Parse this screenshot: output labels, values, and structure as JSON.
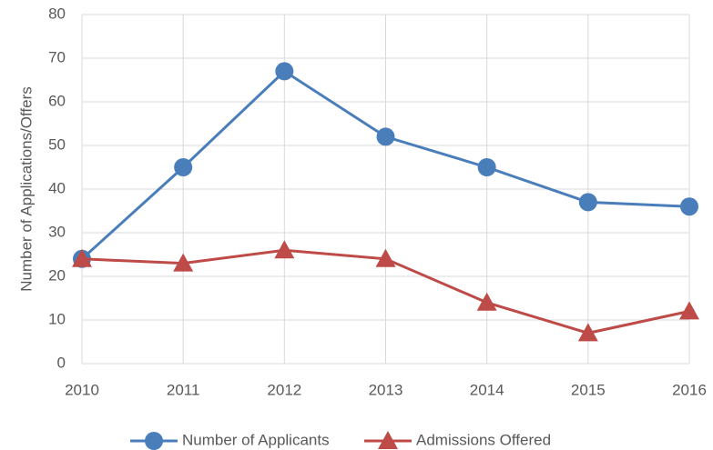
{
  "chart_data": {
    "type": "line",
    "y_label": "Number of Applications/Offers",
    "x": [
      2010,
      2011,
      2012,
      2013,
      2014,
      2015,
      2016
    ],
    "xlim": [
      2010,
      2016
    ],
    "xticks": [
      2010,
      2011,
      2012,
      2013,
      2014,
      2015,
      2016
    ],
    "ylim": [
      0,
      80
    ],
    "yticks": [
      0,
      10,
      20,
      30,
      40,
      50,
      60,
      70,
      80
    ],
    "grid": true,
    "legend": "bottom",
    "series": [
      {
        "name": "Number of Applicants",
        "color": "#4a7ebb",
        "marker": "circle",
        "values": [
          24,
          45,
          67,
          52,
          45,
          37,
          36
        ]
      },
      {
        "name": "Admissions Offered",
        "color": "#be4b48",
        "marker": "triangle",
        "values": [
          24,
          23,
          26,
          24,
          14,
          7,
          12
        ]
      }
    ]
  }
}
